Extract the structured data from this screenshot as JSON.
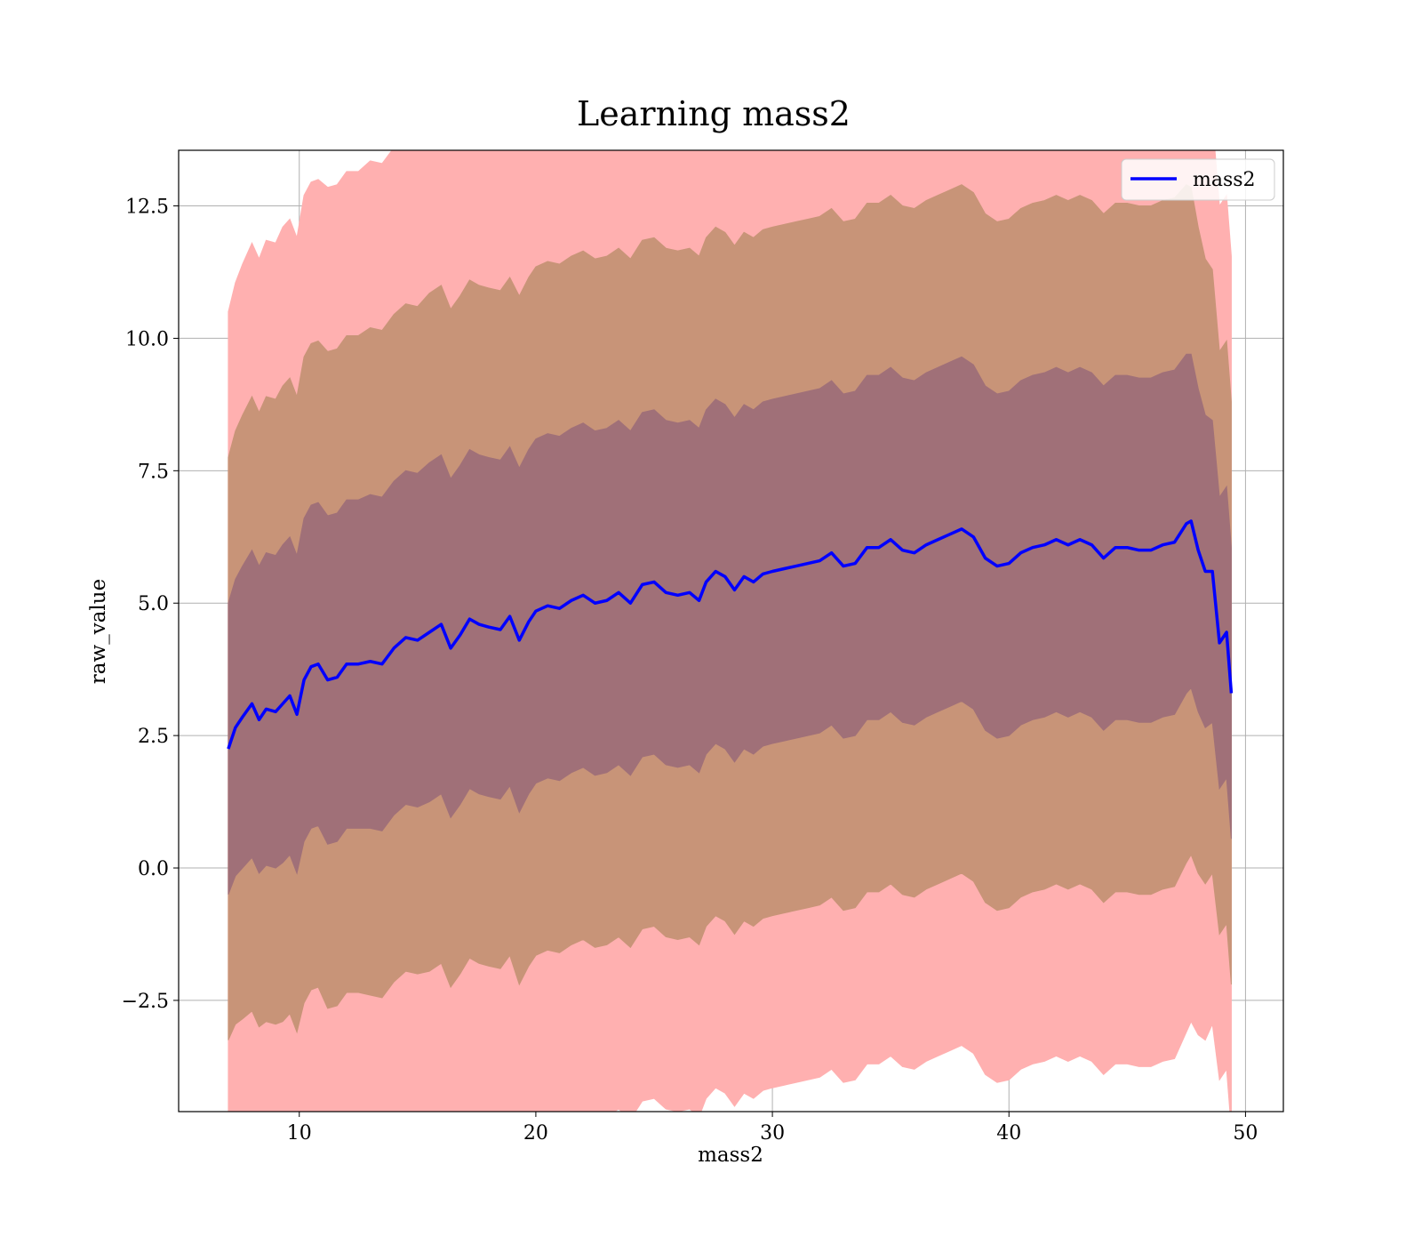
{
  "chart_data": {
    "type": "area",
    "title": "Learning mass2",
    "xlabel": "mass2",
    "ylabel": "raw_value",
    "xlim": [
      4.9,
      51.6
    ],
    "ylim": [
      -4.6,
      13.55
    ],
    "x_ticks": [
      10,
      20,
      30,
      40,
      50
    ],
    "y_ticks": [
      -2.5,
      0.0,
      2.5,
      5.0,
      7.5,
      10.0,
      12.5
    ],
    "x_tick_labels": [
      "10",
      "20",
      "30",
      "40",
      "50"
    ],
    "y_tick_labels": [
      "−2.5",
      "0.0",
      "2.5",
      "5.0",
      "7.5",
      "10.0",
      "12.5"
    ],
    "grid": true,
    "legend_position": "top-right",
    "band_sigmas": [
      1,
      2,
      3
    ],
    "series": [
      {
        "name": "mass2",
        "color": "#0000ff",
        "x": [
          7.0,
          7.3,
          7.6,
          8.0,
          8.3,
          8.6,
          9.0,
          9.3,
          9.6,
          9.9,
          10.2,
          10.5,
          10.8,
          11.2,
          11.6,
          12.0,
          12.5,
          13.0,
          13.5,
          14.0,
          14.5,
          15.0,
          15.5,
          16.0,
          16.4,
          16.8,
          17.2,
          17.6,
          18.0,
          18.5,
          18.9,
          19.3,
          19.7,
          20.0,
          20.5,
          21.0,
          21.5,
          22.0,
          22.5,
          23.0,
          23.5,
          24.0,
          24.5,
          25.0,
          25.5,
          26.0,
          26.5,
          26.9,
          27.2,
          27.6,
          28.0,
          28.4,
          28.8,
          29.2,
          29.6,
          30.0,
          30.5,
          31.0,
          31.5,
          32.0,
          32.5,
          33.0,
          33.5,
          34.0,
          34.5,
          35.0,
          35.5,
          36.0,
          36.5,
          37.0,
          37.5,
          38.0,
          38.5,
          39.0,
          39.5,
          40.0,
          40.5,
          41.0,
          41.5,
          42.0,
          42.5,
          43.0,
          43.5,
          44.0,
          44.5,
          45.0,
          45.5,
          46.0,
          46.5,
          47.0,
          47.5,
          47.7,
          48.0,
          48.3,
          48.6,
          48.9,
          49.2,
          49.4
        ],
        "values": [
          2.25,
          2.65,
          2.85,
          3.1,
          2.8,
          3.0,
          2.95,
          3.1,
          3.25,
          2.9,
          3.55,
          3.8,
          3.85,
          3.55,
          3.6,
          3.85,
          3.85,
          3.9,
          3.85,
          4.15,
          4.35,
          4.3,
          4.45,
          4.6,
          4.15,
          4.4,
          4.7,
          4.6,
          4.55,
          4.5,
          4.75,
          4.3,
          4.65,
          4.85,
          4.95,
          4.9,
          5.05,
          5.15,
          5.0,
          5.05,
          5.2,
          5.0,
          5.35,
          5.4,
          5.2,
          5.15,
          5.2,
          5.05,
          5.4,
          5.6,
          5.5,
          5.25,
          5.5,
          5.4,
          5.55,
          5.6,
          5.65,
          5.7,
          5.75,
          5.8,
          5.95,
          5.7,
          5.75,
          6.05,
          6.05,
          6.2,
          6.0,
          5.95,
          6.1,
          6.2,
          6.3,
          6.4,
          6.25,
          5.85,
          5.7,
          5.75,
          5.95,
          6.05,
          6.1,
          6.2,
          6.1,
          6.2,
          6.1,
          5.85,
          6.05,
          6.05,
          6.0,
          6.0,
          6.1,
          6.15,
          6.5,
          6.55,
          6.0,
          5.6,
          5.6,
          4.25,
          4.45,
          3.3
        ]
      }
    ],
    "band_halfwidth_1sigma": [
      2.75,
      2.8,
      2.85,
      2.9,
      2.9,
      2.95,
      2.95,
      3.0,
      3.0,
      3.0,
      3.05,
      3.05,
      3.05,
      3.1,
      3.1,
      3.1,
      3.1,
      3.15,
      3.15,
      3.15,
      3.15,
      3.15,
      3.2,
      3.2,
      3.2,
      3.2,
      3.2,
      3.2,
      3.2,
      3.2,
      3.2,
      3.25,
      3.25,
      3.25,
      3.25,
      3.25,
      3.25,
      3.25,
      3.25,
      3.25,
      3.25,
      3.25,
      3.25,
      3.25,
      3.25,
      3.25,
      3.25,
      3.25,
      3.25,
      3.25,
      3.25,
      3.25,
      3.25,
      3.25,
      3.25,
      3.25,
      3.25,
      3.25,
      3.25,
      3.25,
      3.25,
      3.25,
      3.25,
      3.25,
      3.25,
      3.25,
      3.25,
      3.25,
      3.25,
      3.25,
      3.25,
      3.25,
      3.25,
      3.25,
      3.25,
      3.25,
      3.25,
      3.25,
      3.25,
      3.25,
      3.25,
      3.25,
      3.25,
      3.25,
      3.25,
      3.25,
      3.25,
      3.25,
      3.25,
      3.25,
      3.2,
      3.15,
      3.05,
      2.95,
      2.85,
      2.75,
      2.75,
      2.75
    ],
    "band_colors": {
      "sigma1": "#a07078",
      "sigma2": "#c89478",
      "sigma3": "#ffb0b0"
    }
  }
}
